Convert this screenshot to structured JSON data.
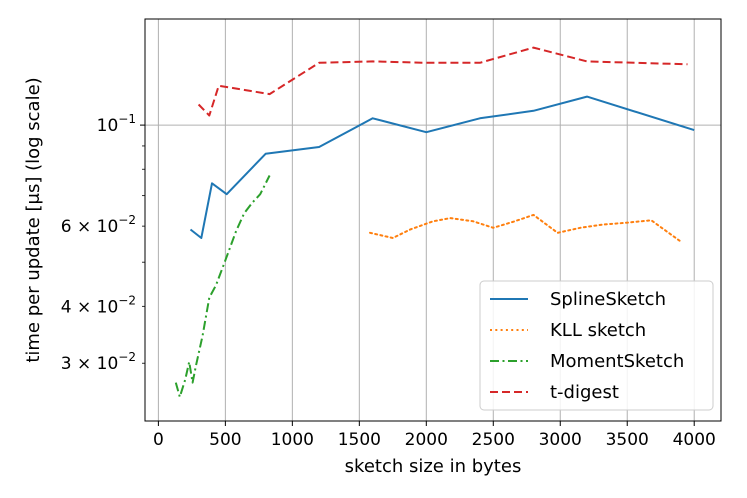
{
  "chart_data": {
    "type": "line",
    "title": "",
    "xlabel": "sketch size in bytes",
    "ylabel": "time per update [μs] (log scale)",
    "xscale": "linear",
    "yscale": "log",
    "xlim": [
      -100,
      4200
    ],
    "ylim": [
      0.0224,
      0.171
    ],
    "grid": true,
    "legend_position": "lower right",
    "x_ticks": [
      {
        "value": 0,
        "label": "0"
      },
      {
        "value": 500,
        "label": "500"
      },
      {
        "value": 1000,
        "label": "1000"
      },
      {
        "value": 1500,
        "label": "1500"
      },
      {
        "value": 2000,
        "label": "2000"
      },
      {
        "value": 2500,
        "label": "2500"
      },
      {
        "value": 3000,
        "label": "3000"
      },
      {
        "value": 3500,
        "label": "3500"
      },
      {
        "value": 4000,
        "label": "4000"
      }
    ],
    "y_major_ticks": [
      {
        "value": 0.1,
        "base": "10",
        "exp": "−1"
      }
    ],
    "y_minor_ticks": [
      {
        "value": 0.03,
        "coef": "3 × 10",
        "exp": "−2"
      },
      {
        "value": 0.04,
        "coef": "4 × 10",
        "exp": "−2"
      },
      {
        "value": 0.06,
        "coef": "6 × 10",
        "exp": "−2"
      },
      {
        "value": 0.05,
        "coef": "",
        "exp": ""
      },
      {
        "value": 0.07,
        "coef": "",
        "exp": ""
      },
      {
        "value": 0.08,
        "coef": "",
        "exp": ""
      },
      {
        "value": 0.09,
        "coef": "",
        "exp": ""
      }
    ],
    "series": [
      {
        "name": "SplineSketch",
        "color": "#1f77b4",
        "dash": "solid",
        "x": [
          240,
          320,
          400,
          510,
          800,
          1200,
          1600,
          2000,
          2400,
          2800,
          3200,
          4000
        ],
        "y": [
          0.059,
          0.0565,
          0.0745,
          0.0705,
          0.0865,
          0.0895,
          0.1035,
          0.0965,
          0.1035,
          0.1075,
          0.1155,
          0.0975
        ]
      },
      {
        "name": "KLL sketch",
        "color": "#ff7f0e",
        "dash": "dotted",
        "x": [
          1580,
          1750,
          1880,
          2050,
          2180,
          2350,
          2500,
          2660,
          2800,
          2980,
          3150,
          3320,
          3480,
          3680,
          3900
        ],
        "y": [
          0.058,
          0.0565,
          0.059,
          0.0615,
          0.0625,
          0.0615,
          0.0595,
          0.0615,
          0.0635,
          0.058,
          0.0595,
          0.0605,
          0.061,
          0.0618,
          0.0555
        ]
      },
      {
        "name": "MomentSketch",
        "color": "#2ca02c",
        "dash": "dashdot",
        "x": [
          130,
          160,
          200,
          230,
          255,
          280,
          330,
          380,
          430,
          500,
          580,
          640,
          700,
          760,
          830
        ],
        "y": [
          0.0272,
          0.0253,
          0.0276,
          0.0302,
          0.0272,
          0.0296,
          0.0345,
          0.0418,
          0.0445,
          0.0505,
          0.0585,
          0.064,
          0.0675,
          0.0705,
          0.0775
        ]
      },
      {
        "name": "t-digest",
        "color": "#d62728",
        "dash": "dashed",
        "x": [
          300,
          380,
          450,
          600,
          830,
          1200,
          1600,
          2000,
          2400,
          2800,
          3200,
          3950
        ],
        "y": [
          0.111,
          0.105,
          0.122,
          0.12,
          0.117,
          0.137,
          0.138,
          0.137,
          0.137,
          0.148,
          0.138,
          0.136
        ]
      }
    ]
  }
}
